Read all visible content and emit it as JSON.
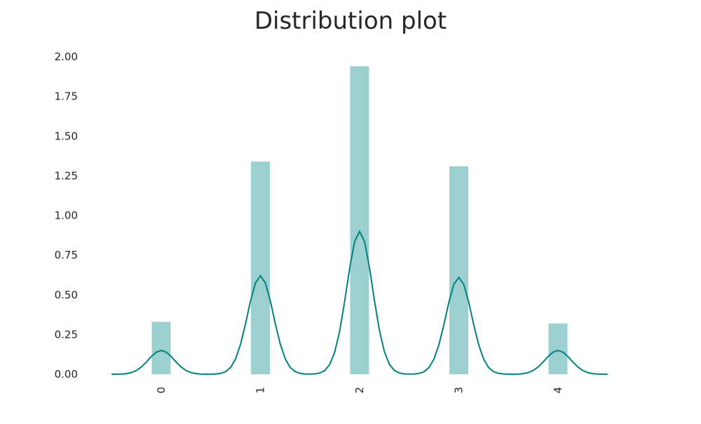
{
  "chart_data": {
    "type": "bar",
    "title": "Distribution plot",
    "xlabel": "",
    "ylabel": "",
    "categories": [
      "0",
      "1",
      "2",
      "3",
      "4"
    ],
    "values": [
      0.33,
      1.34,
      1.94,
      1.31,
      0.32
    ],
    "kde": {
      "peaks": [
        {
          "x": 0,
          "density": 0.15
        },
        {
          "x": 1,
          "density": 0.62
        },
        {
          "x": 2,
          "density": 0.9
        },
        {
          "x": 3,
          "density": 0.61
        },
        {
          "x": 4,
          "density": 0.15
        }
      ],
      "bandwidth": 0.13,
      "x_range": [
        -0.5,
        4.5
      ]
    },
    "ylim": [
      0,
      2.0
    ],
    "yticks": [
      "0.00",
      "0.25",
      "0.50",
      "0.75",
      "1.00",
      "1.25",
      "1.50",
      "1.75",
      "2.00"
    ],
    "grid": false,
    "legend": "none",
    "colors": {
      "bar": "#9ccfcf",
      "kde": "#008080"
    }
  }
}
